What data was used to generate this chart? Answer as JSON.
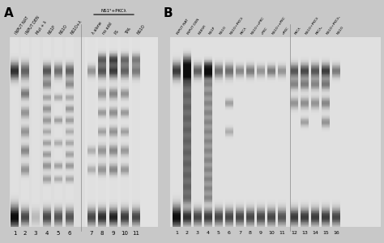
{
  "panel_A": {
    "label": "A",
    "lanes_left": {
      "count": 6,
      "labels": [
        "INPUT NAT",
        "INPUT DEN",
        "Mut + λ",
        "NS1P",
        "NS1O",
        "NS1O+λ"
      ],
      "numbers": [
        "1",
        "2",
        "3",
        "4",
        "5",
        "6"
      ]
    },
    "lanes_right": {
      "count": 5,
      "labels": [
        "λ alone",
        "no add",
        "PS",
        "TPA",
        "NS1O"
      ],
      "numbers": [
        "7",
        "8",
        "9",
        "10",
        "11"
      ],
      "bracket_label": "NS1ᵒ+PKCλ"
    }
  },
  "panel_B": {
    "label": "B",
    "lanes_left": {
      "count": 11,
      "labels": [
        "INPUT NAT",
        "INPUT DEN",
        "K485R",
        "NS1P",
        "NS1O",
        "NS1O+PKCλ",
        "PKCλ",
        "NS1O+cPKC",
        "cPKC",
        "NS1O+nPKC",
        "nPKC"
      ],
      "numbers": [
        "1",
        "2",
        "3",
        "4",
        "5",
        "6",
        "7",
        "8",
        "9",
        "10",
        "11"
      ]
    },
    "lanes_right": {
      "count": 5,
      "labels": [
        "PKCλ",
        "NS1O+PKCλ",
        "PKCλ",
        "NS1O+PKCλ",
        "NS1O"
      ],
      "numbers": [
        "12",
        "13",
        "14",
        "15",
        "16"
      ]
    }
  },
  "bg_color": "#d8d8d8",
  "gel_bg": "#e8e8e8"
}
